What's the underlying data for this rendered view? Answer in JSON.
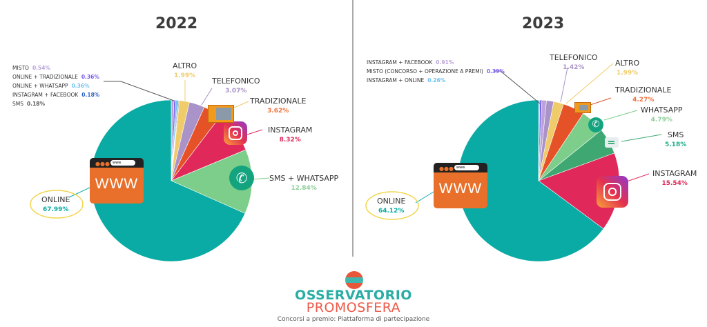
{
  "chart_data": [
    {
      "type": "pie",
      "title": "2022",
      "series": [
        {
          "name": "MISTO",
          "value": 0.54,
          "color": "#b9a3d9"
        },
        {
          "name": "ONLINE + TRADIZIONALE",
          "value": 0.36,
          "color": "#7b5cf0"
        },
        {
          "name": "ONLINE + WHATSAPP",
          "value": 0.36,
          "color": "#6ec1f0"
        },
        {
          "name": "INSTAGRAM + FACEBOOK",
          "value": 0.18,
          "color": "#2f63c4"
        },
        {
          "name": "SMS",
          "value": 0.18,
          "color": "#9a9a9a"
        },
        {
          "name": "ALTRO",
          "value": 1.99,
          "color": "#efcb6a"
        },
        {
          "name": "TELEFONICO",
          "value": 3.07,
          "color": "#a993c8"
        },
        {
          "name": "TRADIZIONALE",
          "value": 3.62,
          "color": "#e65227"
        },
        {
          "name": "INSTAGRAM",
          "value": 8.32,
          "color": "#e0285a"
        },
        {
          "name": "SMS + WHATSAPP",
          "value": 12.84,
          "color": "#7dce8a"
        },
        {
          "name": "ONLINE",
          "value": 67.99,
          "color": "#0aaba5"
        }
      ]
    },
    {
      "type": "pie",
      "title": "2023",
      "series": [
        {
          "name": "INSTAGRAM + ONLINE",
          "value": 0.26,
          "color": "#6ec1f0"
        },
        {
          "name": "MISTO (CONCORSO + OPERAZIONE A PREMI)",
          "value": 0.39,
          "color": "#7b5cf0"
        },
        {
          "name": "INSTAGRAM + FACEBOOK",
          "value": 0.91,
          "color": "#b9a3d9"
        },
        {
          "name": "TELEFONICO",
          "value": 1.42,
          "color": "#a993c8"
        },
        {
          "name": "ALTRO",
          "value": 1.99,
          "color": "#efcb6a"
        },
        {
          "name": "TRADIZIONALE",
          "value": 4.27,
          "color": "#e65227"
        },
        {
          "name": "WHATSAPP",
          "value": 4.79,
          "color": "#7dce8a"
        },
        {
          "name": "SMS",
          "value": 5.18,
          "color": "#3fa872"
        },
        {
          "name": "INSTAGRAM",
          "value": 15.54,
          "color": "#e0285a"
        },
        {
          "name": "ONLINE",
          "value": 64.12,
          "color": "#0aaba5"
        }
      ]
    }
  ],
  "icons": {
    "www_text": "WWW",
    "url_text": "www."
  },
  "footer": {
    "logo_line1": "OSSERVATORIO",
    "logo_line2": "PROMOSFERA",
    "tagline": "Concorsi a premio: Piattaforma di partecipazione"
  }
}
